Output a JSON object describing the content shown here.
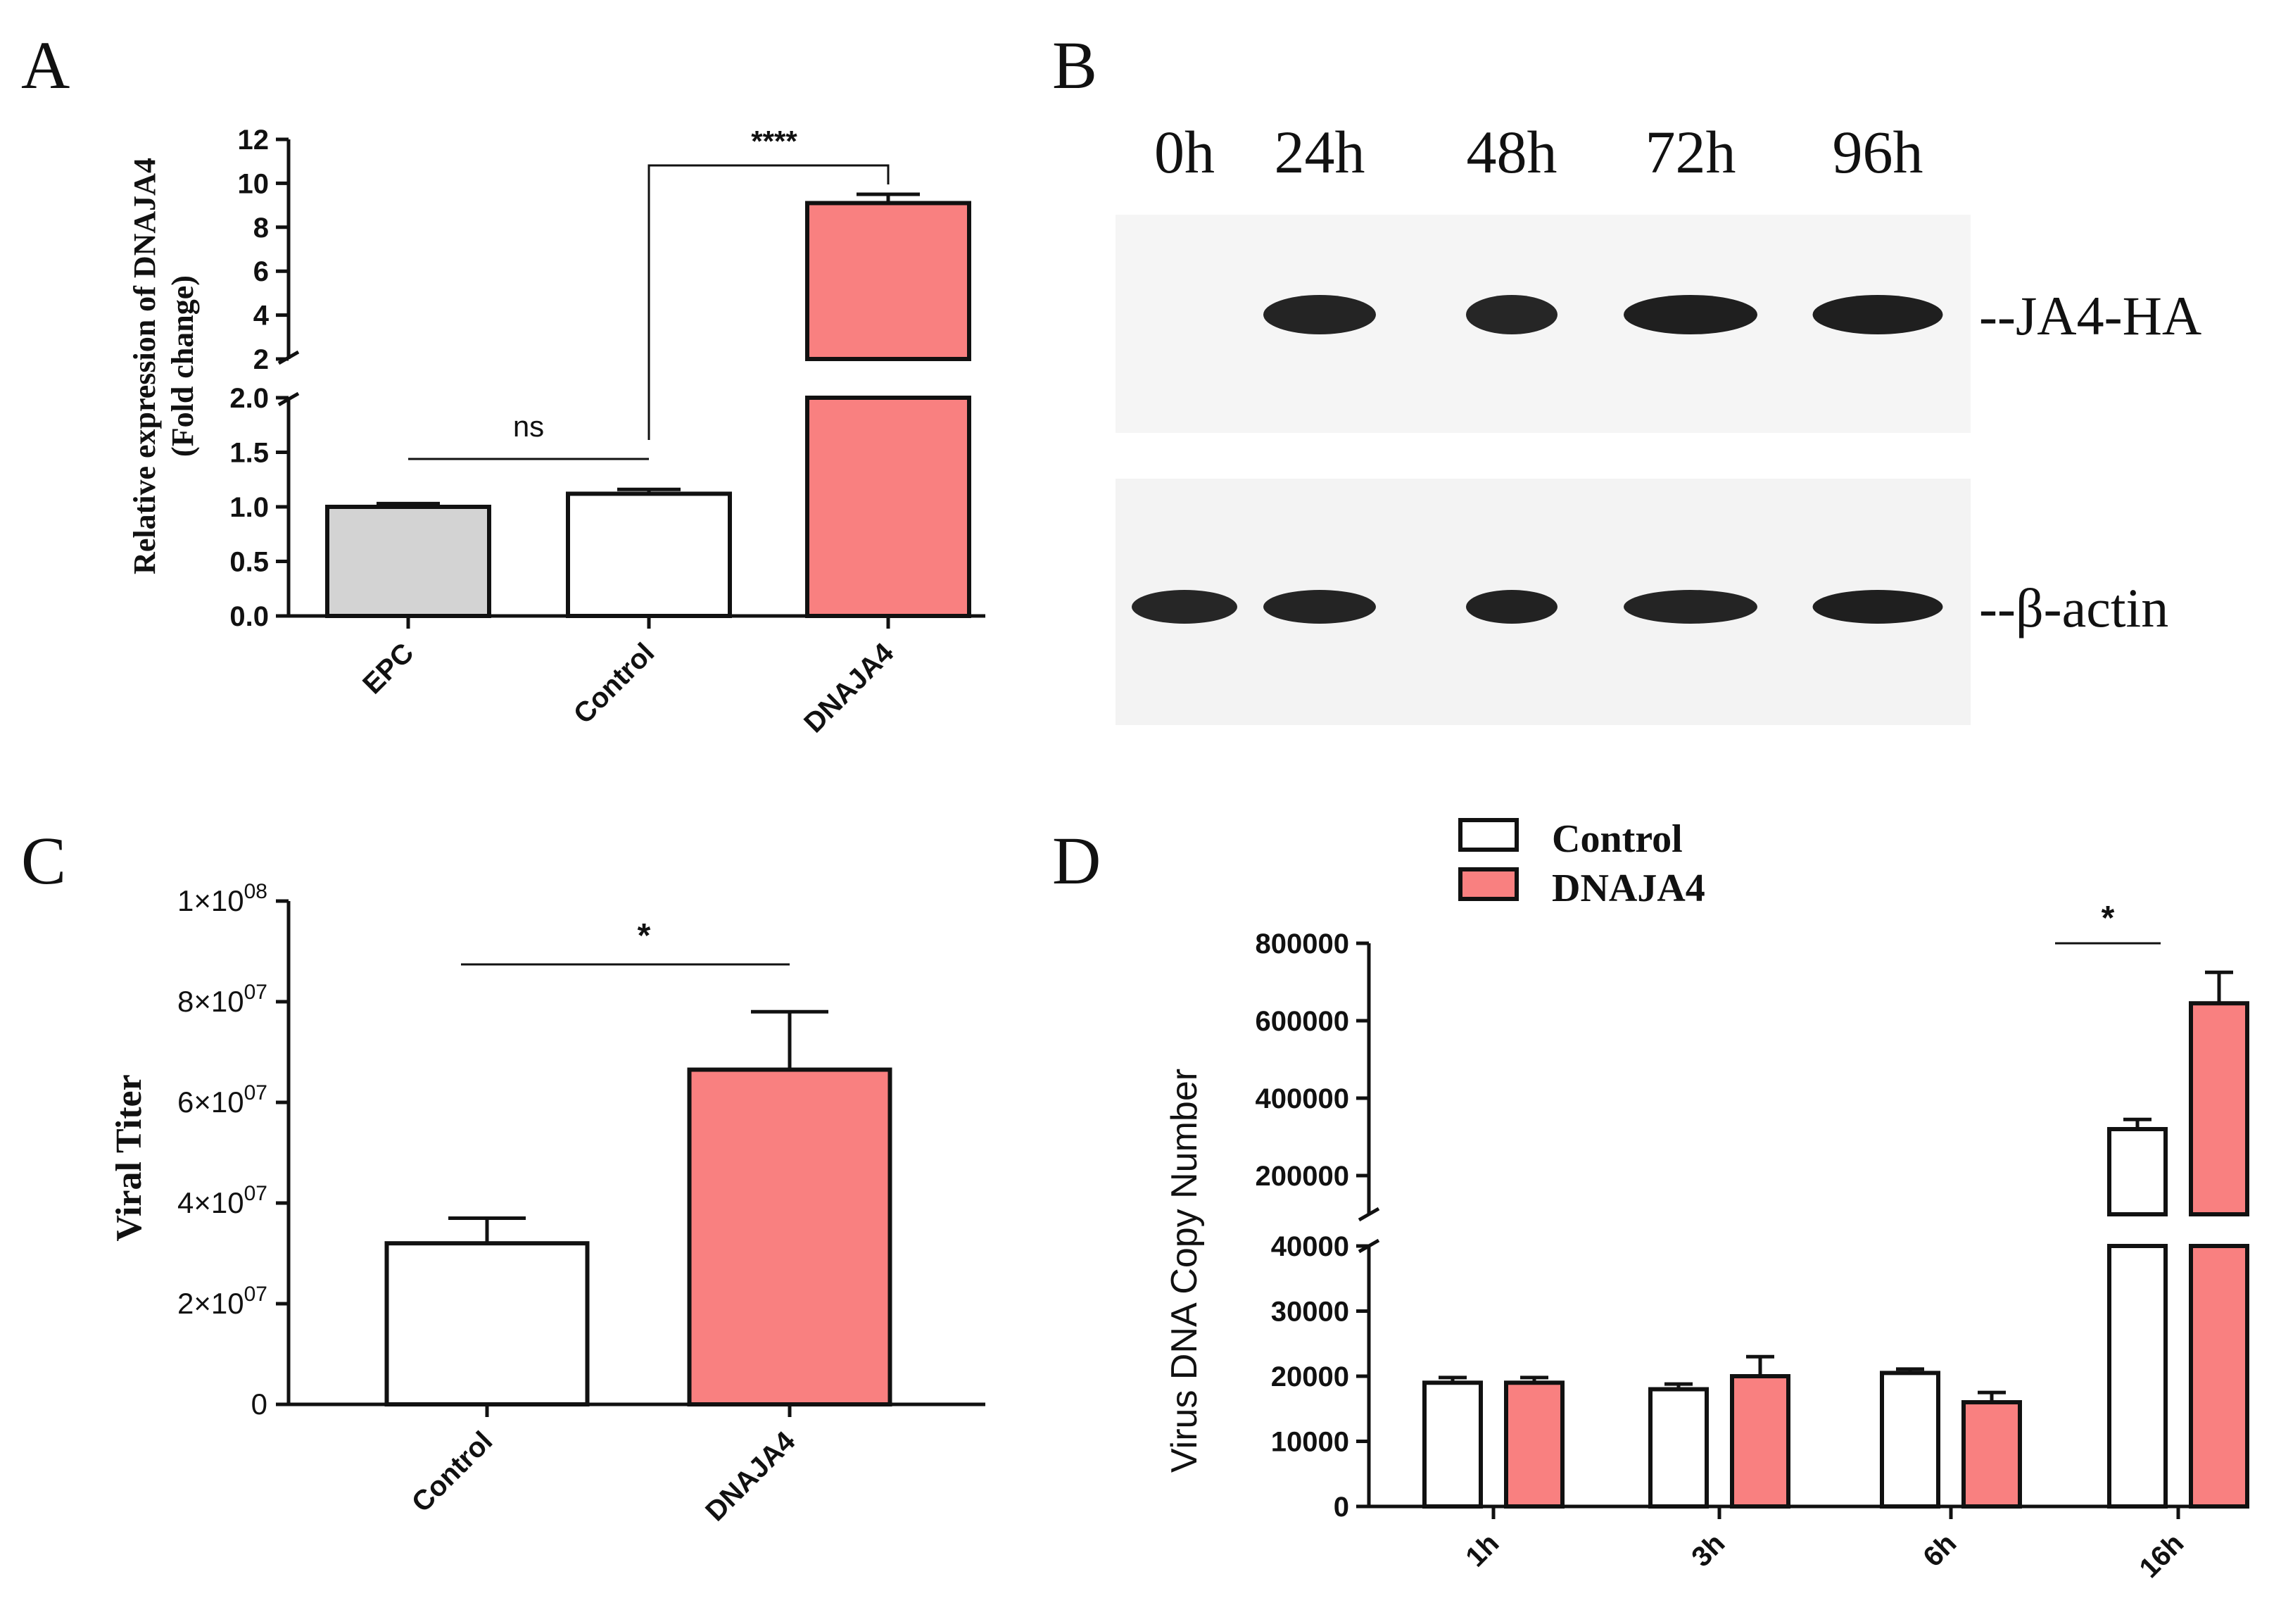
{
  "colors": {
    "epc": "#d3d3d3",
    "control": "#ffffff",
    "dnaja4": "#f98080",
    "axis": "#111111"
  },
  "chart_data": [
    {
      "panel": "A",
      "type": "bar",
      "ylabel": "Relative expression of DNAJA4",
      "ylabel2": "(Fold change)",
      "categories": [
        "EPC",
        "Control",
        "DNAJA4"
      ],
      "values": [
        1.0,
        1.12,
        9.1
      ],
      "errors": [
        0.03,
        0.04,
        0.4
      ],
      "axis_break": {
        "lower": [
          0,
          2.0
        ],
        "upper": [
          2,
          12
        ]
      },
      "lower_ticks": [
        "0.0",
        "0.5",
        "1.0",
        "1.5",
        "2.0"
      ],
      "upper_ticks": [
        "2",
        "4",
        "6",
        "8",
        "10",
        "12"
      ],
      "annotations": [
        {
          "between": [
            "EPC",
            "DNAJA4"
          ],
          "text": "ns"
        },
        {
          "between": [
            "Control",
            "DNAJA4"
          ],
          "text": "****"
        }
      ]
    },
    {
      "panel": "B",
      "type": "blot",
      "lanes": [
        "0h",
        "24h",
        "48h",
        "72h",
        "96h"
      ],
      "bands": [
        {
          "label": "--JA4-HA",
          "intensity": [
            0,
            0.85,
            0.8,
            0.95,
            0.95
          ]
        },
        {
          "label": "--β-actin",
          "intensity": [
            0.8,
            0.85,
            0.9,
            0.85,
            0.95
          ]
        }
      ]
    },
    {
      "panel": "C",
      "type": "bar",
      "ylabel": "Viral Titer",
      "categories": [
        "Control",
        "DNAJA4"
      ],
      "values": [
        32000000,
        66500000
      ],
      "errors": [
        5000000,
        11500000
      ],
      "ylim": [
        0,
        100000000
      ],
      "ticks": [
        {
          "v": 0,
          "mant": "0",
          "exp": ""
        },
        {
          "v": 20000000,
          "mant": "2×10",
          "exp": "07"
        },
        {
          "v": 40000000,
          "mant": "4×10",
          "exp": "07"
        },
        {
          "v": 60000000,
          "mant": "6×10",
          "exp": "07"
        },
        {
          "v": 80000000,
          "mant": "8×10",
          "exp": "07"
        },
        {
          "v": 100000000,
          "mant": "1×10",
          "exp": "08"
        }
      ],
      "annotations": [
        {
          "between": [
            "Control",
            "DNAJA4"
          ],
          "text": "*"
        }
      ]
    },
    {
      "panel": "D",
      "type": "bar",
      "ylabel": "Virus DNA Copy Number",
      "categories": [
        "1h",
        "3h",
        "6h",
        "16h"
      ],
      "series": [
        {
          "name": "Control",
          "values": [
            19000,
            18000,
            20500,
            320000
          ],
          "errors": [
            800,
            800,
            600,
            25000
          ]
        },
        {
          "name": "DNAJA4",
          "values": [
            19000,
            20000,
            16000,
            645000
          ],
          "errors": [
            800,
            3000,
            1500,
            80000
          ]
        }
      ],
      "axis_break": {
        "lower": [
          0,
          40000
        ],
        "upper": [
          100000,
          800000
        ]
      },
      "lower_ticks": [
        "0",
        "10000",
        "20000",
        "30000",
        "40000"
      ],
      "upper_ticks": [
        "200000",
        "400000",
        "600000",
        "800000"
      ],
      "legend_position": "top",
      "annotations": [
        {
          "category": "16h",
          "text": "*"
        }
      ]
    }
  ]
}
